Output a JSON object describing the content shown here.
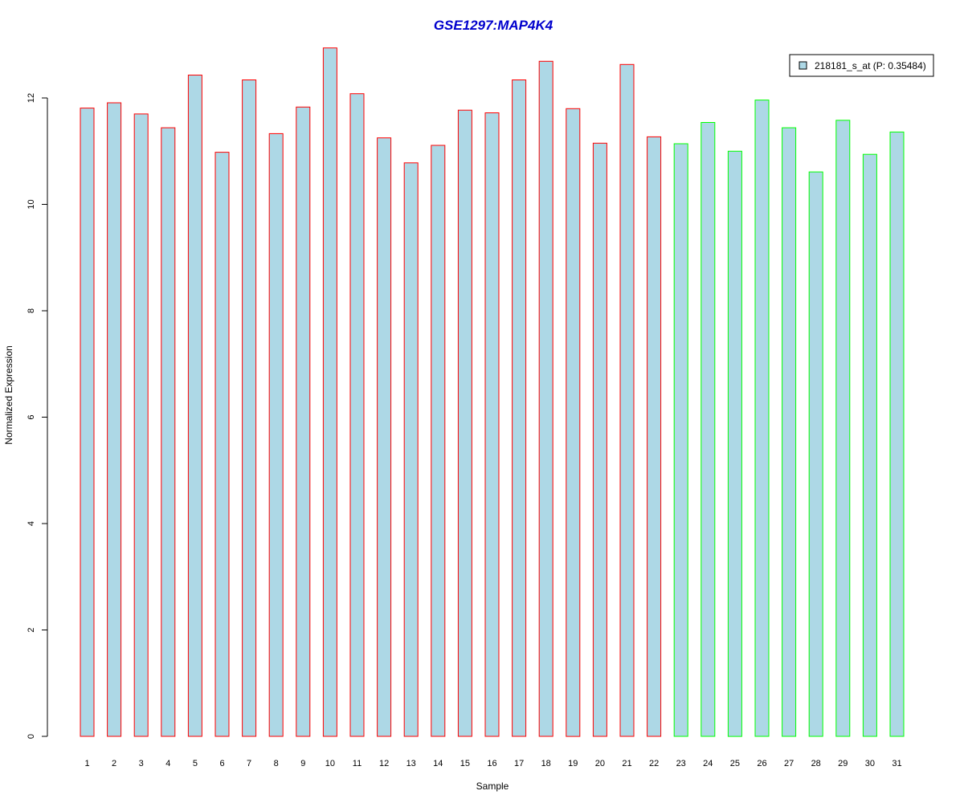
{
  "chart_data": {
    "type": "bar",
    "title": "GSE1297:MAP4K4",
    "xlabel": "Sample",
    "ylabel": "Normalized Expression",
    "categories": [
      "1",
      "2",
      "3",
      "4",
      "5",
      "6",
      "7",
      "8",
      "9",
      "10",
      "11",
      "12",
      "13",
      "14",
      "15",
      "16",
      "17",
      "18",
      "19",
      "20",
      "21",
      "22",
      "23",
      "24",
      "25",
      "26",
      "27",
      "28",
      "29",
      "30",
      "31"
    ],
    "series": [
      {
        "name": "218181_s_at (P: 0.35484)",
        "values": [
          11.81,
          11.91,
          11.7,
          11.44,
          12.43,
          10.98,
          12.34,
          11.33,
          11.83,
          12.94,
          12.08,
          11.25,
          10.78,
          11.11,
          11.77,
          11.72,
          12.34,
          12.69,
          11.8,
          11.15,
          12.63,
          11.27,
          11.14,
          11.54,
          11.0,
          11.96,
          11.44,
          10.61,
          11.58,
          10.94,
          11.36
        ]
      }
    ],
    "groups": [
      {
        "samples": "1-22",
        "border_color": "#ff0000"
      },
      {
        "samples": "23-31",
        "border_color": "#00ff00"
      }
    ],
    "ylim": [
      0,
      13
    ],
    "yticks": [
      0,
      2,
      4,
      6,
      8,
      10,
      12
    ],
    "grid": false,
    "legend": {
      "position": "top-right",
      "entries": [
        "218181_s_at (P: 0.35484)"
      ]
    },
    "colors": {
      "bar_fill": "#add8e6",
      "group1_border": "#ff0000",
      "group2_border": "#00ff00",
      "title": "#0000cd",
      "axis": "#000000"
    }
  }
}
